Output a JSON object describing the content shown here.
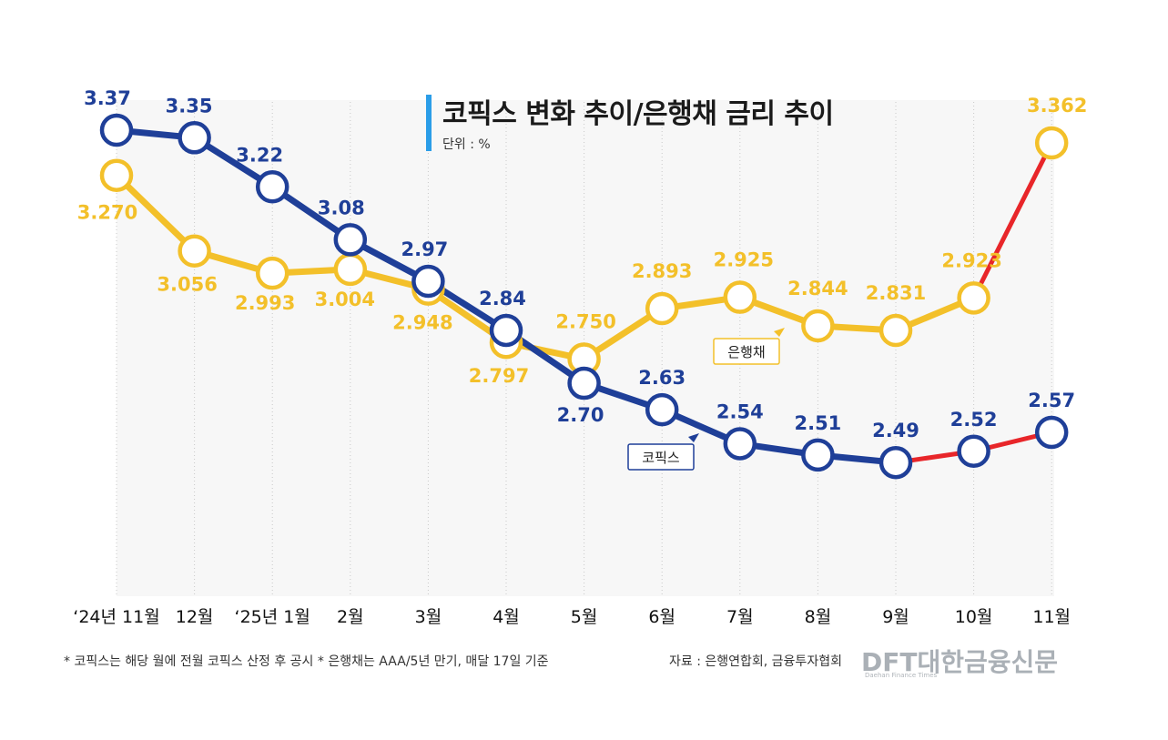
{
  "header": {
    "title": "코픽스 변화 추이/은행채 금리 추이",
    "unit": "단위 : %"
  },
  "footer": {
    "note": "* 코픽스는 해당 월에 전월 코픽스 산정 후 공시  * 은행채는 AAA/5년 만기, 매달 17일 기준",
    "source": "자료 : 은행연합회, 금융투자협회",
    "logo": "DFT대한금융신문",
    "logo_sub": "Daehan Finance Times"
  },
  "colors": {
    "kofix": "#1f3f98",
    "bond": "#f3c02a",
    "recent_change": "#e8262a"
  },
  "chart_data": {
    "type": "line",
    "title": "코픽스 변화 추이/은행채 금리 추이",
    "categories": [
      "‘24년 11월",
      "12월",
      "‘25년 1월",
      "2월",
      "3월",
      "4월",
      "5월",
      "6월",
      "7월",
      "8월",
      "9월",
      "10월",
      "11월"
    ],
    "series": [
      {
        "name": "코픽스",
        "values": [
          3.37,
          3.35,
          3.22,
          3.08,
          2.97,
          2.84,
          2.7,
          2.63,
          2.54,
          2.51,
          2.49,
          2.52,
          2.57
        ],
        "labels": [
          "3.37",
          "3.35",
          "3.22",
          "3.08",
          "2.97",
          "2.84",
          "2.70",
          "2.63",
          "2.54",
          "2.51",
          "2.49",
          "2.52",
          "2.57"
        ]
      },
      {
        "name": "은행채",
        "values": [
          3.27,
          3.056,
          2.993,
          3.004,
          2.948,
          2.797,
          2.75,
          2.893,
          2.925,
          2.844,
          2.831,
          2.923,
          3.362
        ],
        "labels": [
          "3.270",
          "3.056",
          "2.993",
          "3.004",
          "2.948",
          "2.797",
          "2.750",
          "2.893",
          "2.925",
          "2.844",
          "2.831",
          "2.923",
          "3.362"
        ]
      }
    ],
    "highlight_from_index": {
      "코픽스": 10,
      "은행채": 11
    },
    "grid": "vertical-dotted",
    "legend": "inline-tags"
  }
}
